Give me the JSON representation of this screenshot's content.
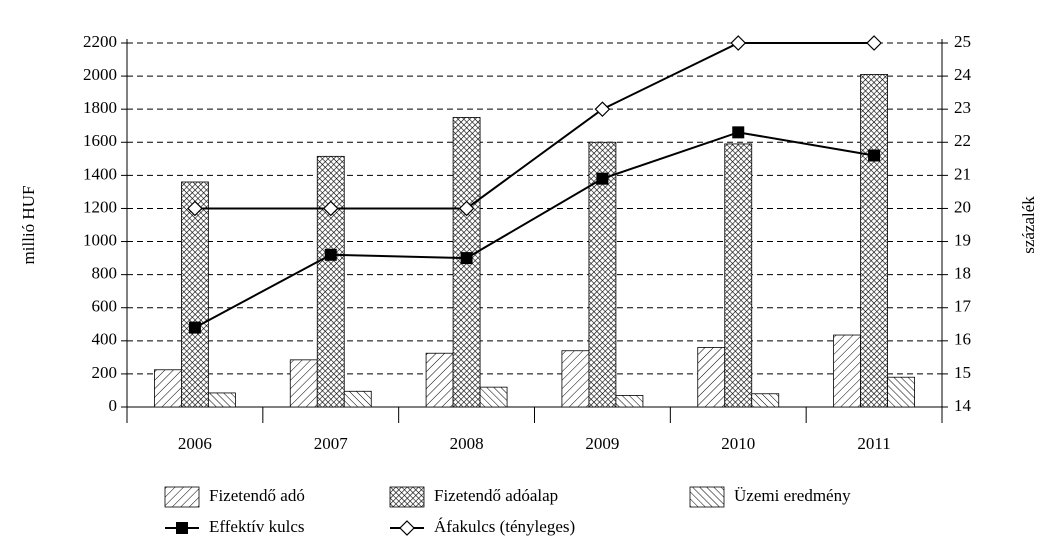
{
  "chart_data": {
    "type": "bar",
    "categories": [
      "2006",
      "2007",
      "2008",
      "2009",
      "2010",
      "2011"
    ],
    "ylabel": "millió HUF",
    "y2label": "százalék",
    "ylim": [
      0,
      2200
    ],
    "yticks": [
      0,
      200,
      400,
      600,
      800,
      1000,
      1200,
      1400,
      1600,
      1800,
      2000,
      2200
    ],
    "y2lim": [
      14,
      25
    ],
    "y2ticks": [
      14,
      15,
      16,
      17,
      18,
      19,
      20,
      21,
      22,
      23,
      24,
      25
    ],
    "grid": true,
    "series": [
      {
        "name": "Fizetendő adó",
        "type": "bar",
        "pattern": "hatch",
        "color": "#000000",
        "values": [
          225,
          285,
          325,
          340,
          360,
          435
        ]
      },
      {
        "name": "Fizetendő adóalap",
        "type": "bar",
        "pattern": "crosshatch",
        "color": "#000000",
        "values": [
          1360,
          1515,
          1750,
          1600,
          1590,
          2010
        ]
      },
      {
        "name": "Üzemi eredmény",
        "type": "bar",
        "pattern": "backhatch",
        "color": "#000000",
        "values": [
          85,
          95,
          120,
          70,
          80,
          180
        ]
      },
      {
        "name": "Effektív kulcs",
        "type": "line",
        "axis": "y2",
        "marker": "square",
        "color": "#000000",
        "values": [
          16.4,
          18.6,
          18.5,
          20.9,
          22.3,
          21.6
        ]
      },
      {
        "name": "Áfakulcs (tényleges)",
        "type": "line",
        "axis": "y2",
        "marker": "diamond",
        "color": "#000000",
        "values": [
          20,
          20,
          20,
          23,
          25,
          25
        ]
      }
    ]
  }
}
